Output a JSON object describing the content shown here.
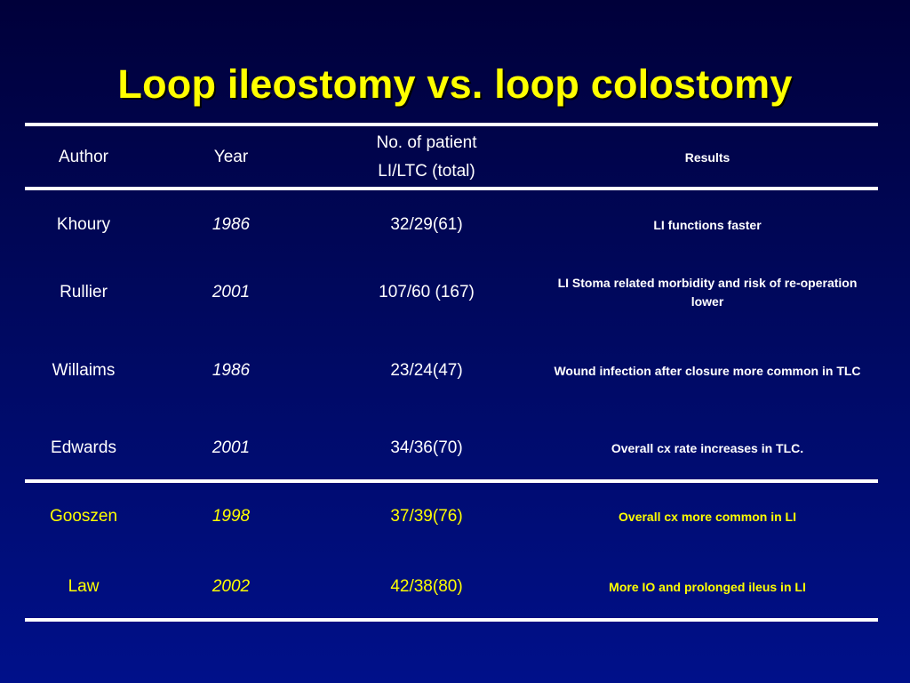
{
  "slide": {
    "title": "Loop ileostomy vs. loop colostomy",
    "colors": {
      "background": "#000a66",
      "title": "#ffff00",
      "text": "#ffffff",
      "highlight": "#ffff00"
    }
  },
  "table": {
    "headers": {
      "author": "Author",
      "year": "Year",
      "patients_line1": "No. of patient",
      "patients_line2": "LI/LTC (total)",
      "results": "Results"
    },
    "rows": [
      {
        "author": "Khoury",
        "year": "1986",
        "patients": "32/29(61)",
        "result": "LI functions faster"
      },
      {
        "author": "Rullier",
        "year": "2001",
        "patients": "107/60 (167)",
        "result": "LI Stoma related morbidity and risk of re-operation lower"
      },
      {
        "author": "Willaims",
        "year": "1986",
        "patients": "23/24(47)",
        "result": "Wound infection after closure more common in TLC"
      },
      {
        "author": "Edwards",
        "year": "2001",
        "patients": "34/36(70)",
        "result": "Overall cx rate increases in TLC."
      },
      {
        "author": "Gooszen",
        "year": "1998",
        "patients": "37/39(76)",
        "result": "Overall cx more common in LI"
      },
      {
        "author": "Law",
        "year": "2002",
        "patients": "42/38(80)",
        "result": "More IO and prolonged ileus in LI"
      }
    ]
  }
}
